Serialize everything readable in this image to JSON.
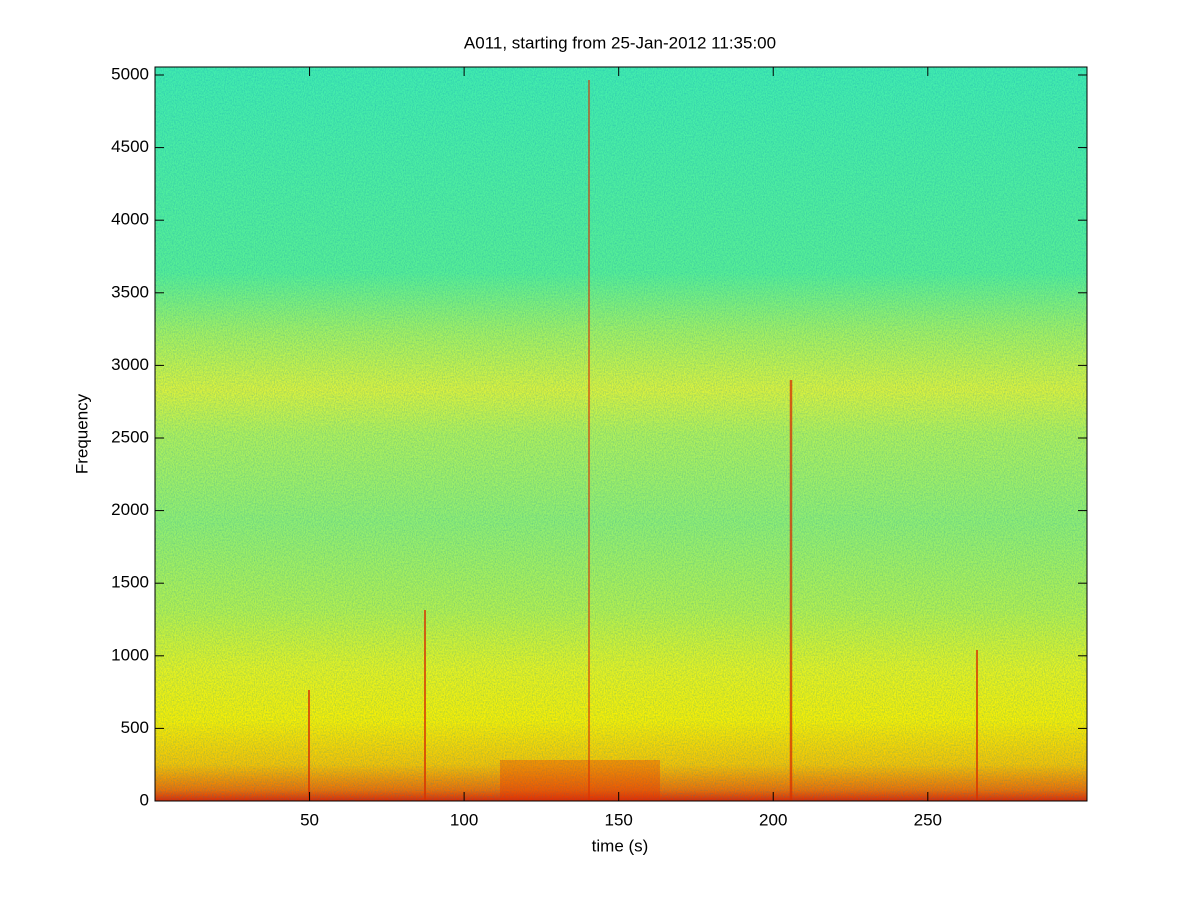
{
  "chart_data": {
    "type": "spectrogram",
    "title": "A011, starting from 25-Jan-2012 11:35:00",
    "x_label": "time (s)",
    "y_label": "Frequency",
    "xlim": [
      0,
      301.5
    ],
    "xticks": [
      50,
      100,
      150,
      200,
      250
    ],
    "ylim": [
      0,
      5055
    ],
    "yticks": [
      0,
      500,
      1000,
      1500,
      2000,
      2500,
      3000,
      3500,
      4000,
      4500,
      5000
    ]
  }
}
